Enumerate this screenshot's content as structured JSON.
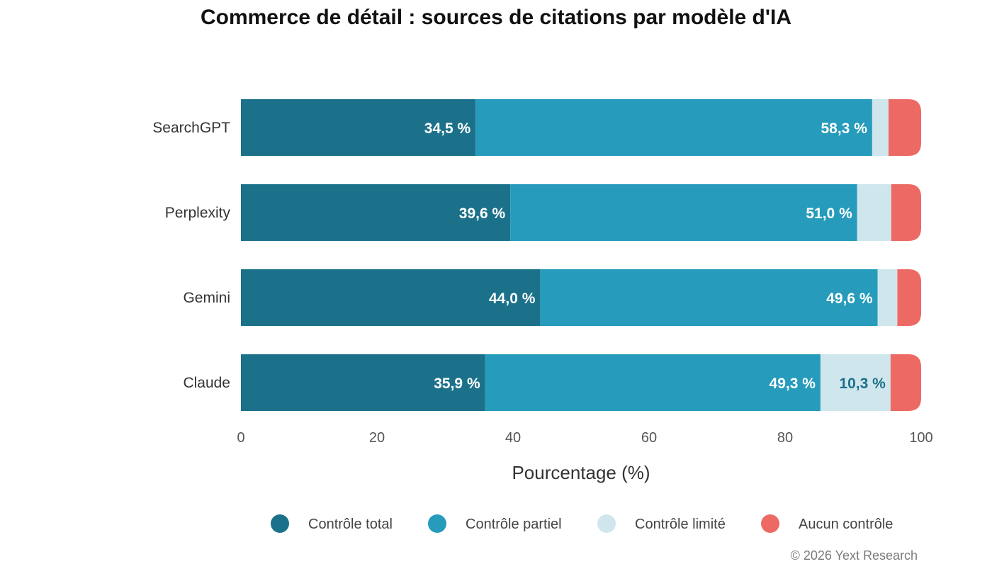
{
  "chart_data": {
    "type": "bar",
    "orientation": "horizontal",
    "stacked": true,
    "title": "Commerce de détail : sources de citations par modèle d'IA",
    "xlabel": "Pourcentage (%)",
    "ylabel": "",
    "xlim": [
      0,
      100
    ],
    "xticks": [
      0,
      20,
      40,
      60,
      80,
      100
    ],
    "categories": [
      "SearchGPT",
      "Perplexity",
      "Gemini",
      "Claude"
    ],
    "series": [
      {
        "name": "Contrôle total",
        "color": "#1c718a",
        "values": [
          34.5,
          39.6,
          44.0,
          35.9
        ],
        "labels": [
          "34,5 %",
          "39,6 %",
          "44,0 %",
          "35,9 %"
        ]
      },
      {
        "name": "Contrôle partiel",
        "color": "#269bbc",
        "values": [
          58.3,
          51.0,
          49.6,
          49.3
        ],
        "labels": [
          "58,3 %",
          "51,0 %",
          "49,6 %",
          "49,3 %"
        ]
      },
      {
        "name": "Contrôle limité",
        "color": "#cfe6ed",
        "values": [
          2.4,
          5.0,
          2.9,
          10.3
        ],
        "labels": [
          "",
          "",
          "",
          "10,3 %"
        ]
      },
      {
        "name": "Aucun contrôle",
        "color": "#ec6a63",
        "values": [
          4.8,
          4.4,
          3.5,
          4.5
        ],
        "labels": [
          "",
          "",
          "",
          ""
        ]
      }
    ],
    "grid": false,
    "legend_position": "bottom"
  },
  "footer": {
    "credit": "© 2026 Yext Research"
  }
}
